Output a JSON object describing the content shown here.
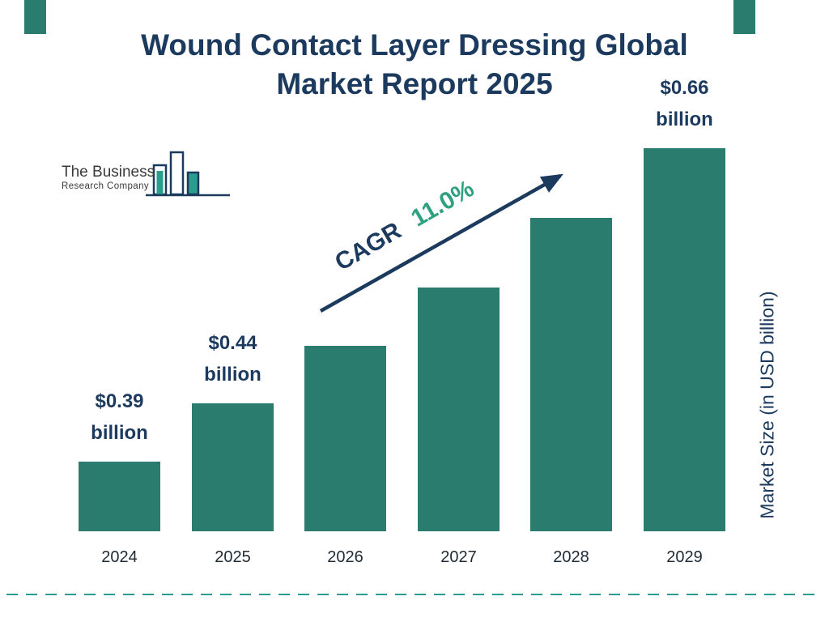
{
  "header": {
    "title_line1": "Wound Contact Layer Dressing Global",
    "title_line2": "Market Report 2025"
  },
  "logo": {
    "name": "The Business",
    "subtitle": "Research Company"
  },
  "annotation": {
    "cagr_label": "CAGR",
    "cagr_value": "11.0%"
  },
  "axis": {
    "y_label": "Market Size (in USD billion)"
  },
  "colors": {
    "bar_teal": "#2a7d6e",
    "title_navy": "#1c3a5e",
    "cagr_green": "#2fa180",
    "dashed_teal": "#2a9d8f"
  },
  "chart_data": {
    "type": "bar",
    "title": "Wound Contact Layer Dressing Global Market Report 2025",
    "categories": [
      "2024",
      "2025",
      "2026",
      "2027",
      "2028",
      "2029"
    ],
    "values": [
      0.39,
      0.44,
      0.49,
      0.54,
      0.6,
      0.66
    ],
    "data_labels": [
      "$0.39 billion",
      "$0.44 billion",
      null,
      null,
      null,
      "$0.66 billion"
    ],
    "xlabel": "",
    "ylabel": "Market Size (in USD billion)",
    "ylim": [
      0.33,
      0.7
    ],
    "grid": false,
    "legend": "none",
    "cagr": "11.0%"
  }
}
